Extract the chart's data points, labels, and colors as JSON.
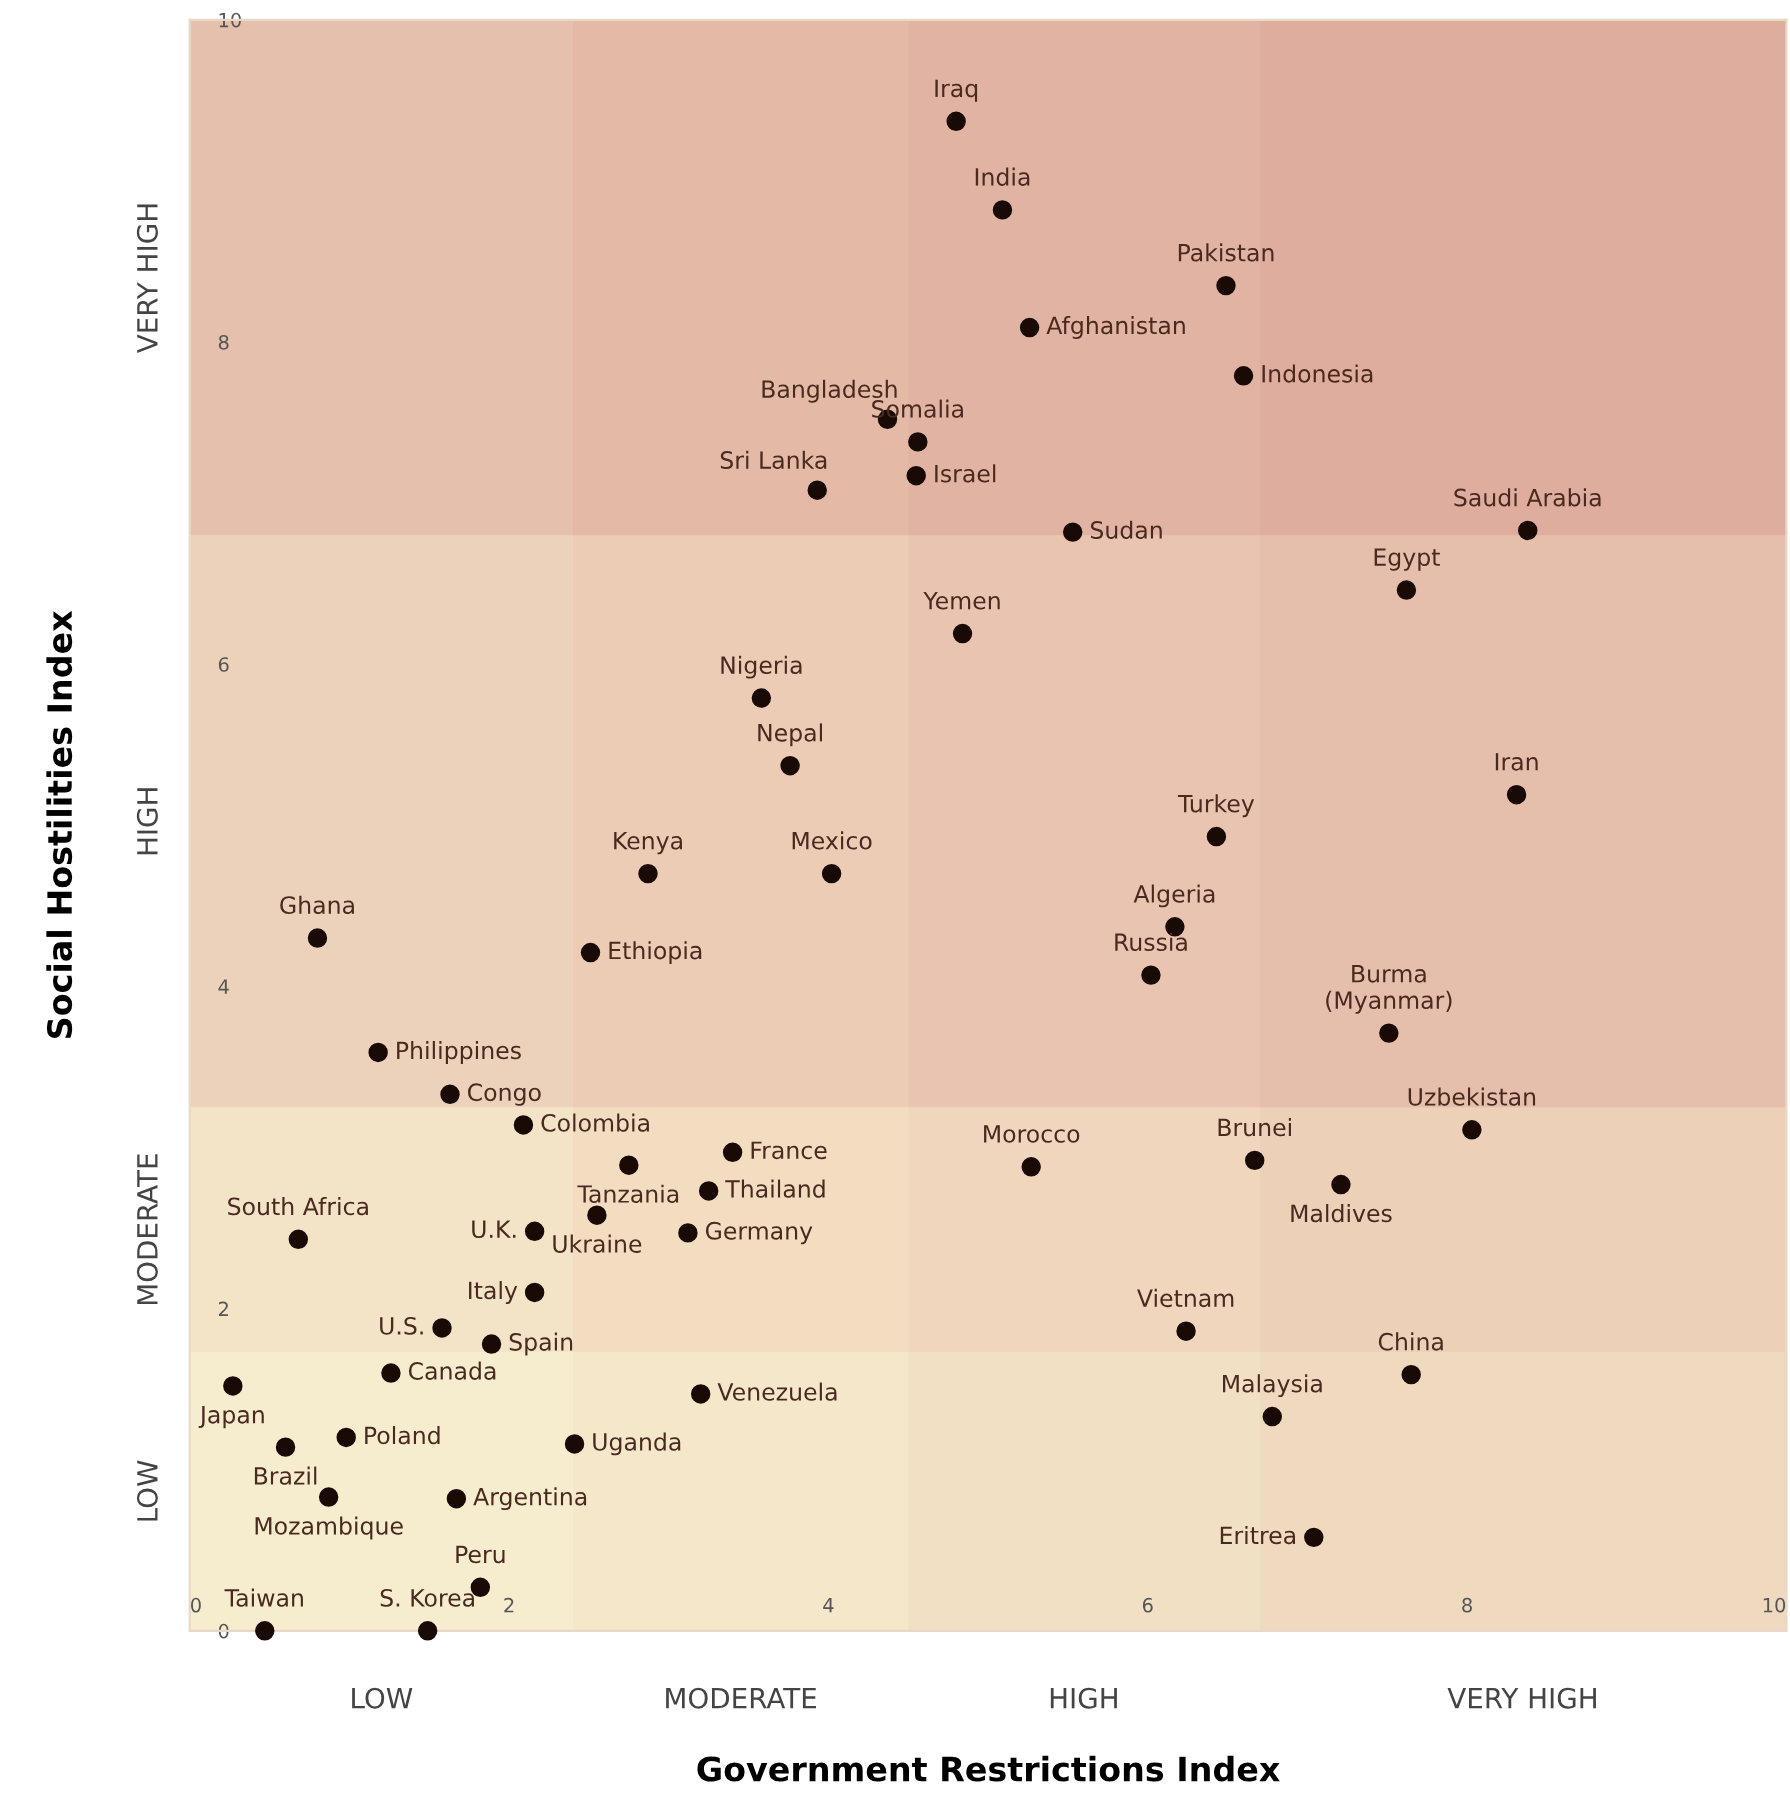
{
  "chart_data": {
    "type": "scatter",
    "xlabel": "Government Restrictions Index",
    "ylabel": "Social Hostilities Index",
    "xlim": [
      0,
      10
    ],
    "ylim": [
      0,
      10
    ],
    "xticks": [
      0,
      2,
      4,
      6,
      8,
      10
    ],
    "yticks": [
      0,
      2,
      4,
      6,
      8,
      10
    ],
    "grid": false,
    "legend": false,
    "marker": "circle",
    "bands": [
      {
        "axis": "x",
        "from": 0,
        "to": 2.4,
        "label": "LOW",
        "color": "#f3e3bf"
      },
      {
        "axis": "x",
        "from": 2.4,
        "to": 4.5,
        "label": "MODERATE",
        "color": "#ecc8a8"
      },
      {
        "axis": "x",
        "from": 4.5,
        "to": 6.7,
        "label": "HIGH",
        "color": "#e2ae98"
      },
      {
        "axis": "x",
        "from": 6.7,
        "to": 10,
        "label": "VERY HIGH",
        "color": "#d39383"
      },
      {
        "axis": "y",
        "from": 0,
        "to": 1.73,
        "label": "LOW",
        "color": "#f5ecc8"
      },
      {
        "axis": "y",
        "from": 1.73,
        "to": 3.25,
        "label": "MODERATE",
        "color": "#f0dcba"
      },
      {
        "axis": "y",
        "from": 3.25,
        "to": 6.8,
        "label": "HIGH",
        "color": "#e6bfa6"
      },
      {
        "axis": "y",
        "from": 6.8,
        "to": 10,
        "label": "VERY HIGH",
        "color": "#d9a28e"
      }
    ],
    "series": [
      {
        "color": "#1a0a05",
        "x": [
          4.8,
          5.09,
          6.49,
          5.26,
          6.6,
          4.37,
          4.56,
          4.55,
          3.93,
          5.53,
          8.38,
          7.62,
          4.84,
          3.58,
          3.76,
          8.31,
          6.43,
          2.87,
          4.02,
          0.8,
          6.17,
          2.51,
          6.02,
          7.51,
          1.18,
          1.63,
          2.09,
          8.03,
          3.4,
          2.75,
          5.27,
          6.67,
          7.21,
          3.25,
          2.55,
          0.68,
          2.16,
          3.12,
          2.16,
          6.24,
          1.58,
          1.89,
          1.26,
          7.65,
          0.27,
          3.2,
          6.78,
          0.98,
          2.41,
          0.6,
          0.87,
          1.67,
          7.04,
          1.82,
          0.47,
          1.49
        ],
        "values": [
          9.37,
          8.82,
          8.35,
          8.09,
          7.79,
          7.52,
          7.38,
          7.17,
          7.08,
          6.82,
          6.83,
          6.46,
          6.19,
          5.79,
          5.37,
          5.19,
          4.93,
          4.7,
          4.7,
          4.3,
          4.37,
          4.21,
          4.07,
          3.71,
          3.59,
          3.33,
          3.14,
          3.11,
          2.97,
          2.89,
          2.88,
          2.92,
          2.77,
          2.73,
          2.58,
          2.43,
          2.48,
          2.47,
          2.1,
          1.86,
          1.88,
          1.78,
          1.6,
          1.59,
          1.52,
          1.47,
          1.33,
          1.2,
          1.16,
          1.14,
          0.83,
          0.82,
          0.58,
          0.27,
          0.0,
          0.0
        ],
        "value_labels": [
          "Iraq",
          "India",
          "Pakistan",
          "Afghanistan",
          "Indonesia",
          "Bangladesh",
          "Somalia",
          "Israel",
          "Sri Lanka",
          "Sudan",
          "Saudi Arabia",
          "Egypt",
          "Yemen",
          "Nigeria",
          "Nepal",
          "Iran",
          "Turkey",
          "Kenya",
          "Mexico",
          "Ghana",
          "Algeria",
          "Ethiopia",
          "Russia",
          "Burma\n(Myanmar)",
          "Philippines",
          "Congo",
          "Colombia",
          "Uzbekistan",
          "France",
          "Tanzania",
          "Morocco",
          "Brunei",
          "Maldives",
          "Thailand",
          "Ukraine",
          "South Africa",
          "U.K.",
          "Germany",
          "Italy",
          "Vietnam",
          "U.S.",
          "Spain",
          "Canada",
          "China",
          "Japan",
          "Venezuela",
          "Malaysia",
          "Poland",
          "Uganda",
          "Brazil",
          "Mozambique",
          "Argentina",
          "Eritrea",
          "Peru",
          "Taiwan",
          "S. Korea"
        ]
      }
    ]
  }
}
